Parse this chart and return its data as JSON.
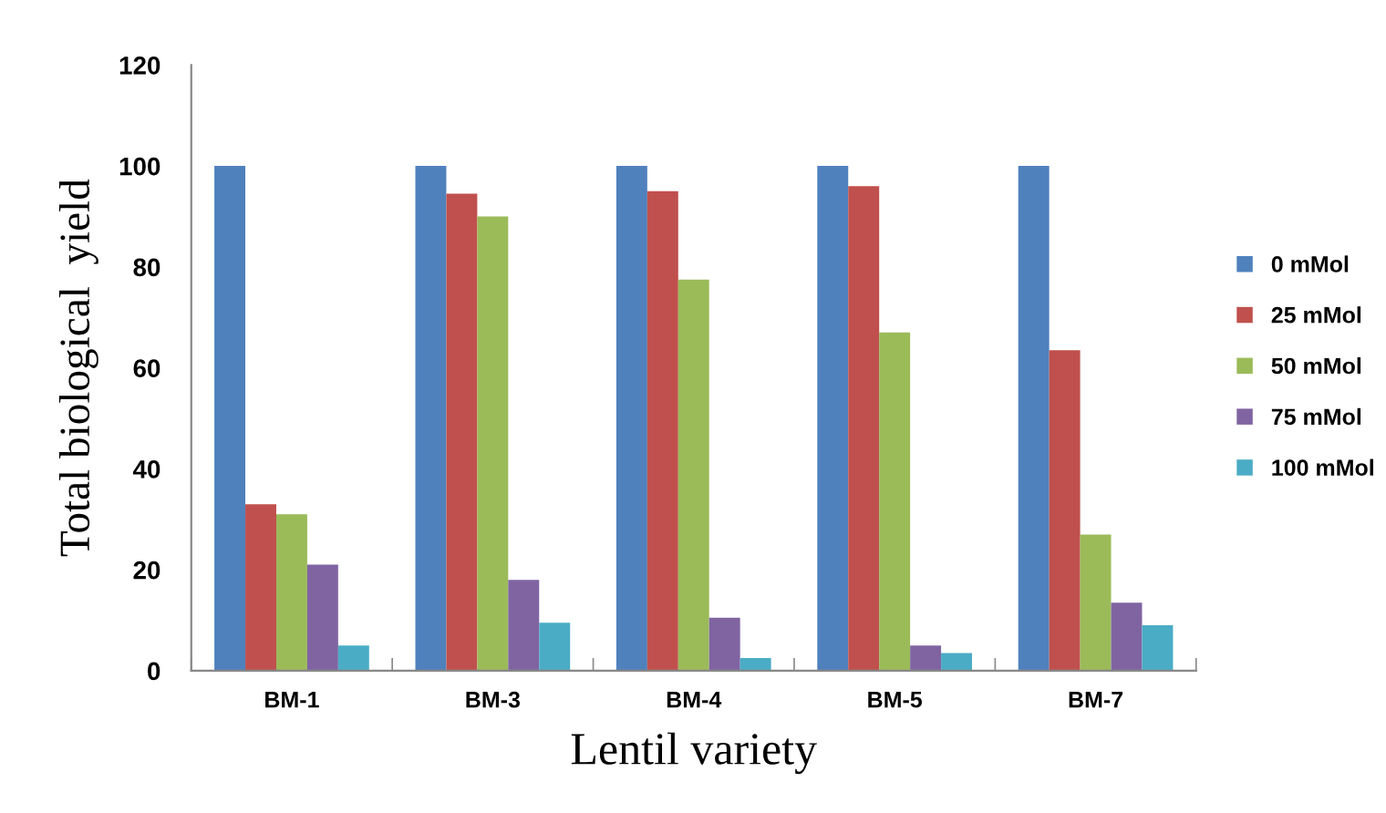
{
  "chart_data": {
    "type": "bar",
    "xlabel": "Lentil variety",
    "ylabel": "Total biological  yield",
    "categories": [
      "BM-1",
      "BM-3",
      "BM-4",
      "BM-5",
      "BM-7"
    ],
    "series": [
      {
        "name": "0 mMol",
        "color": "#4f81bd",
        "values": [
          100,
          100,
          100,
          100,
          100
        ]
      },
      {
        "name": "25 mMol",
        "color": "#c0504d",
        "values": [
          33,
          94.5,
          95,
          96,
          63.5
        ]
      },
      {
        "name": "50 mMol",
        "color": "#9bbb59",
        "values": [
          31,
          90,
          77.5,
          67,
          27
        ]
      },
      {
        "name": "75 mMol",
        "color": "#8064a2",
        "values": [
          21,
          18,
          10.5,
          5,
          13.5
        ]
      },
      {
        "name": "100 mMol",
        "color": "#4bacc6",
        "values": [
          5,
          9.5,
          2.5,
          3.5,
          9
        ]
      }
    ],
    "ylim": [
      0,
      120
    ],
    "yticks": [
      0,
      20,
      40,
      60,
      80,
      100,
      120
    ],
    "grid": false,
    "legend": "right"
  }
}
